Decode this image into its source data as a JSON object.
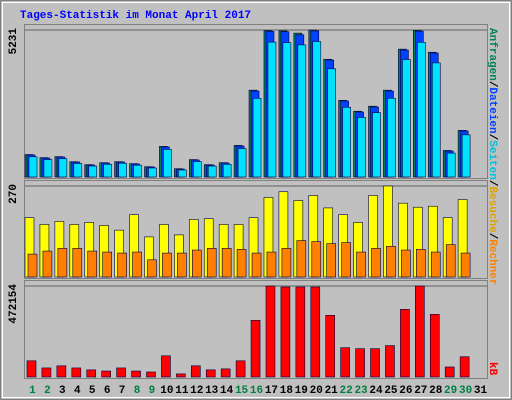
{
  "title": "Tages-Statistik im Monat April 2017",
  "legend_separator": "/",
  "chart_data": [
    {
      "type": "bar",
      "series": [
        {
          "name": "Anfragen",
          "color": "#00805c",
          "values": [
            800,
            690,
            725,
            545,
            440,
            510,
            545,
            475,
            365,
            1090,
            295,
            620,
            440,
            510,
            1125,
            3090,
            5210,
            5200,
            5120,
            5231,
            4190,
            2730,
            2340,
            2520,
            3090,
            4550,
            5215,
            4440,
            945,
            1660,
            0
          ]
        },
        {
          "name": "Dateien",
          "color": "#0040ff",
          "values": [
            783,
            676,
            712,
            534,
            427,
            498,
            534,
            463,
            356,
            1068,
            285,
            605,
            427,
            498,
            1103,
            3060,
            5180,
            5170,
            5060,
            5200,
            4163,
            2704,
            2313,
            2491,
            3060,
            4519,
            5190,
            4412,
            925,
            1637,
            0
          ]
        },
        {
          "name": "Seiten",
          "color": "#00e0ff",
          "values": [
            720,
            620,
            650,
            480,
            390,
            450,
            490,
            420,
            320,
            980,
            250,
            550,
            390,
            450,
            1010,
            2800,
            4800,
            4780,
            4700,
            4820,
            3850,
            2480,
            2120,
            2290,
            2800,
            4180,
            4790,
            4060,
            850,
            1500,
            0
          ]
        }
      ],
      "ylim": [
        0,
        5231
      ],
      "yticks": [
        5231
      ]
    },
    {
      "type": "bar",
      "series": [
        {
          "name": "Besuche",
          "color": "#ffff00",
          "values": [
            176,
            156,
            165,
            156,
            162,
            153,
            139,
            185,
            119,
            156,
            125,
            171,
            173,
            156,
            156,
            176,
            236,
            253,
            227,
            242,
            205,
            185,
            162,
            242,
            270,
            219,
            207,
            210,
            176,
            230,
            0
          ]
        },
        {
          "name": "Rechner",
          "color": "#ff8000",
          "values": [
            68,
            77,
            85,
            85,
            77,
            74,
            71,
            74,
            51,
            71,
            71,
            80,
            85,
            85,
            82,
            71,
            74,
            85,
            108,
            105,
            99,
            102,
            74,
            85,
            91,
            80,
            82,
            74,
            96,
            71,
            0
          ]
        }
      ],
      "ylim": [
        0,
        270
      ],
      "yticks": [
        270
      ]
    },
    {
      "type": "bar",
      "categories": [
        "1",
        "2",
        "3",
        "4",
        "5",
        "6",
        "7",
        "8",
        "9",
        "10",
        "11",
        "12",
        "13",
        "14",
        "15",
        "16",
        "17",
        "18",
        "19",
        "20",
        "21",
        "22",
        "23",
        "24",
        "25",
        "26",
        "27",
        "28",
        "29",
        "30",
        "31"
      ],
      "category_colors": [
        "#008040",
        "#008040",
        "#000000",
        "#000000",
        "#000000",
        "#000000",
        "#000000",
        "#008040",
        "#008040",
        "#000000",
        "#000000",
        "#000000",
        "#000000",
        "#000000",
        "#008040",
        "#008040",
        "#000000",
        "#000000",
        "#000000",
        "#000000",
        "#000000",
        "#008040",
        "#008040",
        "#000000",
        "#000000",
        "#000000",
        "#000000",
        "#000000",
        "#008040",
        "#008040",
        "#000000"
      ],
      "series": [
        {
          "name": "kB",
          "color": "#ff0000",
          "values": [
            84000,
            47000,
            58000,
            47000,
            37000,
            31000,
            47000,
            31000,
            26000,
            110000,
            16000,
            58000,
            37000,
            42000,
            84000,
            294000,
            472000,
            467000,
            467000,
            467000,
            320000,
            152000,
            147000,
            147000,
            163000,
            351000,
            472154,
            325000,
            52000,
            105000,
            0
          ]
        }
      ],
      "ylim": [
        0,
        472154
      ],
      "yticks": [
        472154
      ]
    }
  ]
}
